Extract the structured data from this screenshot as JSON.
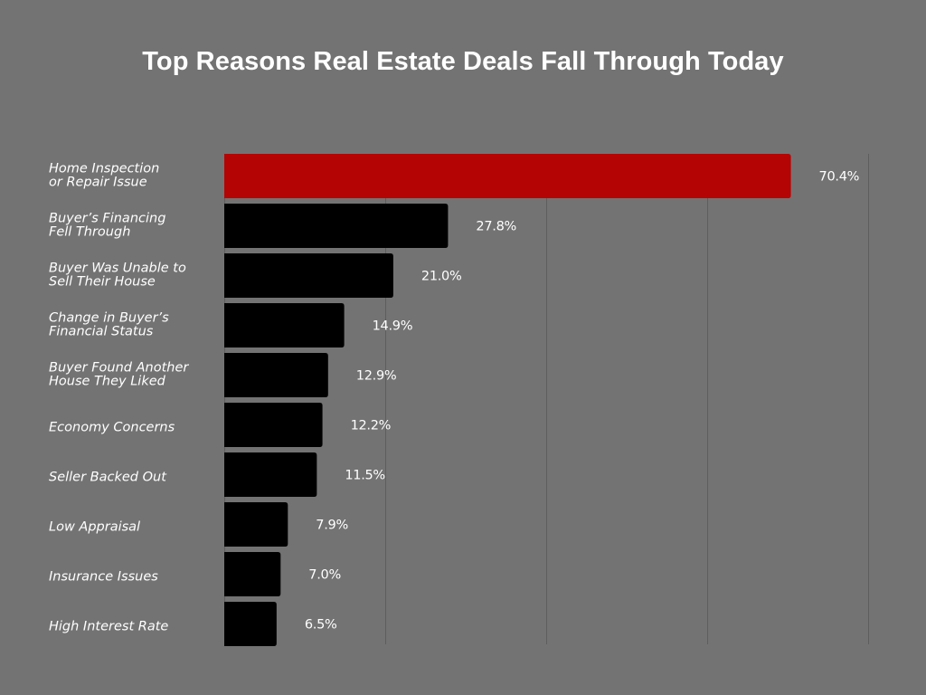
{
  "chart_data": {
    "type": "bar",
    "orientation": "horizontal",
    "title": "Top Reasons Real Estate Deals Fall Through Today",
    "xlabel": "",
    "ylabel": "",
    "xlim": [
      0,
      80
    ],
    "grid": true,
    "legend": "none",
    "value_format": "percent, one decimal",
    "categories": [
      [
        "Home Inspection",
        "or Repair Issue"
      ],
      [
        "Buyer’s Financing",
        "Fell Through"
      ],
      [
        "Buyer Was Unable to",
        "Sell Their House"
      ],
      [
        "Change in Buyer’s",
        "Financial Status"
      ],
      [
        "Buyer Found Another",
        "House They Liked"
      ],
      [
        "Economy Concerns"
      ],
      [
        "Seller Backed Out"
      ],
      [
        "Low Appraisal"
      ],
      [
        "Insurance Issues"
      ],
      [
        "High Interest Rate"
      ]
    ],
    "values": [
      70.4,
      27.8,
      21.0,
      14.9,
      12.9,
      12.2,
      11.5,
      7.9,
      7.0,
      6.5
    ],
    "value_labels": [
      "70.4%",
      "27.8%",
      "21.0%",
      "14.9%",
      "12.9%",
      "12.2%",
      "11.5%",
      "7.9%",
      "7.0%",
      "6.5%"
    ],
    "colors": {
      "highlight": "#b50404",
      "bar": "#000000",
      "background": "#737373",
      "grid": "#5e5e5e",
      "text": "#ffffff"
    }
  }
}
